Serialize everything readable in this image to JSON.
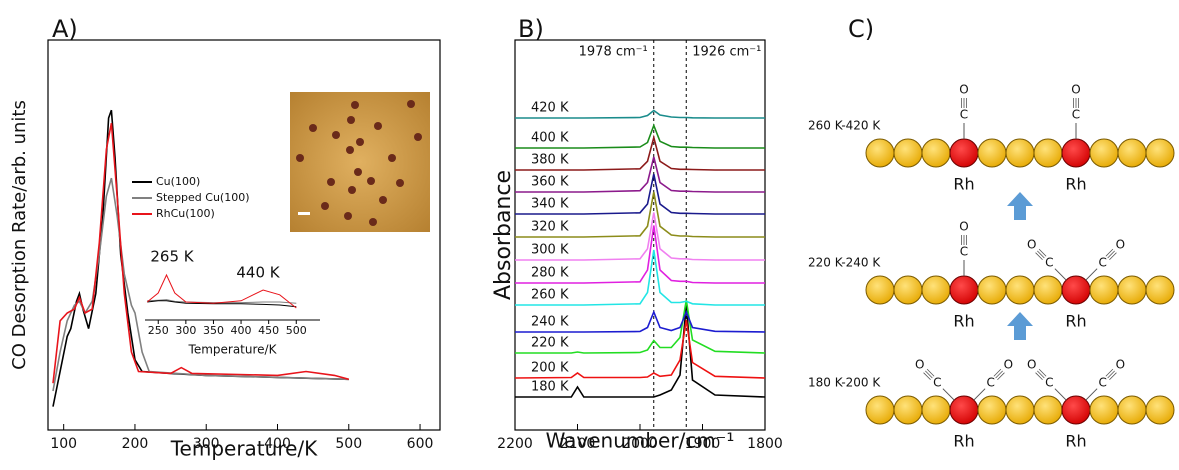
{
  "chart_data": [
    {
      "panel": "A)",
      "type": "line",
      "xlabel": "Temperature/K",
      "ylabel": "CO Desorption Rate/arb. units",
      "xlim": [
        78,
        628
      ],
      "xticks": [
        100,
        200,
        300,
        400,
        500,
        600
      ],
      "ylim": [
        0,
        1
      ],
      "legend": "center",
      "series": [
        {
          "name": "Cu(100)",
          "color": "#000000",
          "x": [
            85,
            95,
            105,
            110,
            118,
            122,
            127,
            135,
            145,
            155,
            163,
            167,
            172,
            180,
            190,
            200,
            210,
            250,
            300,
            400,
            500
          ],
          "values": [
            0.06,
            0.15,
            0.24,
            0.26,
            0.33,
            0.35,
            0.31,
            0.26,
            0.35,
            0.55,
            0.8,
            0.82,
            0.7,
            0.45,
            0.3,
            0.18,
            0.15,
            0.145,
            0.14,
            0.135,
            0.13
          ]
        },
        {
          "name": "Stepped Cu(100)",
          "color": "#808080",
          "x": [
            85,
            95,
            105,
            115,
            122,
            130,
            140,
            150,
            160,
            167,
            175,
            185,
            195,
            200,
            210,
            220,
            300,
            500
          ],
          "values": [
            0.1,
            0.2,
            0.28,
            0.32,
            0.33,
            0.3,
            0.33,
            0.45,
            0.6,
            0.646,
            0.55,
            0.4,
            0.32,
            0.3,
            0.2,
            0.15,
            0.14,
            0.13
          ]
        },
        {
          "name": "RhCu(100)",
          "color": "#e8141b",
          "x": [
            85,
            95,
            105,
            115,
            122,
            130,
            140,
            150,
            160,
            167,
            175,
            185,
            195,
            205,
            250,
            265,
            280,
            400,
            440,
            480,
            500
          ],
          "values": [
            0.12,
            0.28,
            0.3,
            0.31,
            0.34,
            0.3,
            0.31,
            0.48,
            0.72,
            0.787,
            0.6,
            0.35,
            0.2,
            0.15,
            0.145,
            0.16,
            0.145,
            0.14,
            0.15,
            0.14,
            0.13
          ]
        }
      ]
    },
    {
      "type": "line",
      "xlabel": "Temperature/K",
      "xlim": [
        226,
        543
      ],
      "xticks": [
        250,
        300,
        350,
        400,
        450,
        500
      ],
      "ylim": [
        0,
        1
      ],
      "annotations": [
        "265 K",
        "440 K"
      ],
      "x": [
        230,
        250,
        265,
        280,
        300,
        350,
        400,
        440,
        470,
        500
      ],
      "series": [
        {
          "color": "#808080",
          "values": [
            0.32,
            0.33,
            0.34,
            0.31,
            0.3,
            0.29,
            0.29,
            0.3,
            0.3,
            0.28
          ]
        },
        {
          "color": "#000000",
          "values": [
            0.3,
            0.32,
            0.32,
            0.3,
            0.28,
            0.27,
            0.27,
            0.26,
            0.25,
            0.22
          ]
        },
        {
          "color": "#e8141b",
          "values": [
            0.3,
            0.45,
            0.75,
            0.45,
            0.3,
            0.28,
            0.32,
            0.5,
            0.42,
            0.2
          ]
        }
      ]
    },
    {
      "panel": "B)",
      "type": "line",
      "xlabel": "Wavenumber/cm⁻¹",
      "ylabel": "Absorbance",
      "xlim": [
        2200,
        1800
      ],
      "xticks": [
        2200,
        2100,
        2000,
        1900,
        1800
      ],
      "ylim": [
        0,
        15.6
      ],
      "vlines": [
        {
          "value": 1978,
          "label": "1978 cm⁻¹"
        },
        {
          "value": 1926,
          "label": "1926 cm⁻¹"
        }
      ],
      "x": [
        2200,
        2110,
        2100,
        2090,
        2000,
        1988,
        1978,
        1968,
        1950,
        1936,
        1926,
        1916,
        1880,
        1800
      ],
      "series": [
        {
          "name": "180 K",
          "color": "#000000",
          "values": [
            1.32,
            1.32,
            1.72,
            1.32,
            1.32,
            1.32,
            1.32,
            1.4,
            1.6,
            2.2,
            5.0,
            2.0,
            1.4,
            1.32
          ]
        },
        {
          "name": "200 K",
          "color": "#ee1111",
          "values": [
            2.08,
            2.1,
            2.28,
            2.1,
            2.1,
            2.12,
            2.28,
            2.15,
            2.2,
            2.8,
            4.4,
            2.7,
            2.15,
            2.08
          ]
        },
        {
          "name": "220 K",
          "color": "#22dd22",
          "values": [
            3.08,
            3.08,
            3.12,
            3.08,
            3.1,
            3.2,
            3.58,
            3.3,
            3.3,
            3.7,
            5.2,
            3.6,
            3.15,
            3.08
          ]
        },
        {
          "name": "240 K",
          "color": "#1c1cd0",
          "values": [
            3.92,
            3.92,
            3.92,
            3.92,
            3.94,
            4.1,
            4.72,
            4.1,
            3.98,
            4.1,
            4.72,
            4.1,
            3.95,
            3.92
          ]
        },
        {
          "name": "260 K",
          "color": "#22e5e5",
          "values": [
            5.0,
            5.0,
            5.0,
            5.0,
            5.05,
            5.5,
            7.2,
            5.5,
            5.1,
            5.1,
            5.15,
            5.05,
            5.0,
            5.0
          ]
        },
        {
          "name": "280 K",
          "color": "#e020e0",
          "values": [
            5.88,
            5.88,
            5.88,
            5.88,
            5.93,
            6.4,
            8.18,
            6.4,
            5.98,
            5.95,
            5.95,
            5.9,
            5.88,
            5.88
          ]
        },
        {
          "name": "300 K",
          "color": "#f080f0",
          "values": [
            6.8,
            6.8,
            6.8,
            6.8,
            6.85,
            7.25,
            8.7,
            7.25,
            6.88,
            6.85,
            6.85,
            6.82,
            6.8,
            6.8
          ]
        },
        {
          "name": "320 K",
          "color": "#8c8c1a",
          "values": [
            7.72,
            7.72,
            7.72,
            7.72,
            7.77,
            8.15,
            9.52,
            8.15,
            7.8,
            7.76,
            7.76,
            7.74,
            7.72,
            7.72
          ]
        },
        {
          "name": "340 K",
          "color": "#1a1a8c",
          "values": [
            8.64,
            8.64,
            8.64,
            8.64,
            8.69,
            9.04,
            10.24,
            9.04,
            8.7,
            8.67,
            8.67,
            8.66,
            8.64,
            8.64
          ]
        },
        {
          "name": "360 K",
          "color": "#8c1a8c",
          "values": [
            9.52,
            9.52,
            9.52,
            9.52,
            9.57,
            9.9,
            10.92,
            9.9,
            9.58,
            9.55,
            9.55,
            9.54,
            9.52,
            9.52
          ]
        },
        {
          "name": "380 K",
          "color": "#8c1a1a",
          "values": [
            10.4,
            10.4,
            10.4,
            10.4,
            10.45,
            10.75,
            11.7,
            10.75,
            10.46,
            10.43,
            10.43,
            10.42,
            10.4,
            10.4
          ]
        },
        {
          "name": "400 K",
          "color": "#1a8c1a",
          "values": [
            11.28,
            11.28,
            11.28,
            11.28,
            11.32,
            11.5,
            12.18,
            11.55,
            11.34,
            11.31,
            11.31,
            11.3,
            11.28,
            11.28
          ]
        },
        {
          "name": "420 K",
          "color": "#1a8c8c",
          "values": [
            12.48,
            12.48,
            12.48,
            12.48,
            12.5,
            12.58,
            12.78,
            12.6,
            12.52,
            12.5,
            12.5,
            12.49,
            12.48,
            12.48
          ]
        }
      ]
    }
  ],
  "diagram": {
    "panel": "C)",
    "atoms": {
      "oxygen": "O",
      "carbon": "C"
    },
    "rows": [
      {
        "label": "260 K-420 K",
        "metal": [
          "Rh",
          "Rh"
        ]
      },
      {
        "label": "220 K-240 K",
        "metal": [
          "Rh",
          "Rh"
        ]
      },
      {
        "label": "180 K-200 K",
        "metal": [
          "Rh",
          "Rh"
        ]
      }
    ]
  }
}
